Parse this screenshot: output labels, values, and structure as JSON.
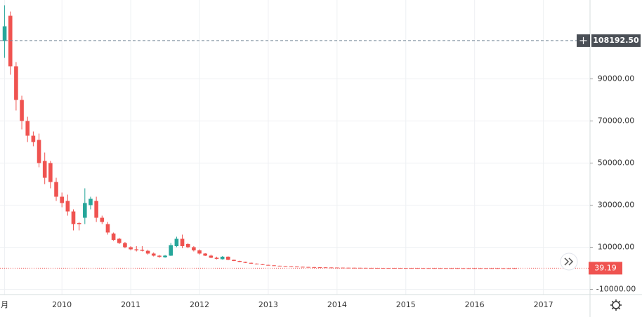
{
  "chart_data": {
    "type": "candlestick",
    "categories": [
      "月",
      null,
      null,
      null,
      null,
      null,
      null,
      null,
      null,
      null,
      "2010",
      null,
      null,
      null,
      null,
      null,
      null,
      null,
      null,
      null,
      null,
      null,
      "2011",
      null,
      null,
      null,
      null,
      null,
      null,
      null,
      null,
      null,
      null,
      null,
      "2012",
      null,
      null,
      null,
      null,
      null,
      null,
      null,
      null,
      null,
      null,
      null,
      "2013",
      null,
      null,
      null,
      null,
      null,
      null,
      null,
      null,
      null,
      null,
      null,
      "2014",
      null,
      null,
      null,
      null,
      null,
      null,
      null,
      null,
      null,
      null,
      null,
      "2015",
      null,
      null,
      null,
      null,
      null,
      null,
      null,
      null,
      null,
      null,
      null,
      "2016",
      null,
      null,
      null,
      null,
      null,
      null,
      null,
      null,
      null,
      null,
      null,
      "2017",
      null,
      null,
      null,
      null,
      null,
      null,
      null
    ],
    "open": [
      108000,
      120000,
      96000,
      80000,
      70000,
      63000,
      61000,
      51000,
      50000,
      41000,
      34000,
      32000,
      27000,
      21500,
      24000,
      30000,
      32000,
      24000,
      21000,
      16500,
      14000,
      12000,
      10000,
      9000,
      8800,
      8300,
      7000,
      6000,
      5200,
      6000,
      10500,
      14000,
      11500,
      10000,
      8500,
      7000,
      6000,
      5000,
      4300,
      5500,
      4000,
      3500,
      3000,
      2600,
      2200,
      1900,
      1600,
      1400,
      1200,
      1000,
      900,
      800,
      700,
      620,
      550,
      480,
      430,
      380,
      340,
      300,
      270,
      250,
      230,
      210,
      190,
      175,
      160,
      150,
      140,
      130,
      120,
      112,
      105,
      98,
      92,
      86,
      80,
      75,
      70,
      66,
      62,
      58,
      55,
      52,
      50,
      48,
      46,
      44,
      42,
      40,
      null,
      null,
      null,
      null,
      null,
      null,
      null,
      null,
      null,
      null,
      null,
      null
    ],
    "high": [
      125000,
      122000,
      98000,
      82000,
      72000,
      65000,
      64000,
      55000,
      51000,
      43000,
      36000,
      35000,
      28000,
      22000,
      38000,
      34000,
      34000,
      25000,
      22000,
      17000,
      14500,
      12500,
      10500,
      10500,
      10500,
      8800,
      7500,
      6300,
      6300,
      12000,
      15000,
      16000,
      12000,
      10500,
      9000,
      7200,
      6500,
      5500,
      5800,
      5700,
      4100,
      3600,
      3100,
      2700,
      2300,
      2000,
      1700,
      1450,
      1250,
      1050,
      950,
      850,
      740,
      650,
      580,
      500,
      450,
      400,
      360,
      320,
      285,
      265,
      240,
      220,
      200,
      185,
      170,
      158,
      148,
      138,
      127,
      118,
      110,
      103,
      97,
      90,
      85,
      79,
      74,
      70,
      66,
      61,
      58,
      55,
      53,
      51,
      49,
      47,
      45,
      42,
      null,
      null,
      null,
      null,
      null,
      null,
      null,
      null,
      null,
      null,
      null,
      null
    ],
    "low": [
      100000,
      92000,
      75000,
      66000,
      60000,
      58000,
      48000,
      40000,
      38000,
      32000,
      29000,
      25000,
      18000,
      18000,
      21000,
      28000,
      22000,
      21000,
      16000,
      13000,
      11500,
      9500,
      8500,
      8000,
      8000,
      6500,
      5600,
      5000,
      5000,
      5800,
      10000,
      9500,
      9500,
      8000,
      6500,
      5800,
      4800,
      4200,
      4100,
      3800,
      3400,
      2900,
      2500,
      2100,
      1800,
      1500,
      1300,
      1150,
      950,
      850,
      760,
      660,
      590,
      520,
      450,
      410,
      360,
      320,
      285,
      255,
      235,
      215,
      200,
      180,
      165,
      150,
      142,
      132,
      123,
      114,
      106,
      100,
      93,
      87,
      81,
      76,
      71,
      66,
      62,
      58,
      55,
      52,
      49,
      47,
      45,
      43,
      41,
      39,
      38,
      37.5,
      null,
      null,
      null,
      null,
      null,
      null,
      null,
      null,
      null,
      null,
      null,
      null
    ],
    "close": [
      115000,
      96000,
      80000,
      70000,
      63000,
      60000,
      50000,
      43000,
      41000,
      34000,
      31000,
      27000,
      21000,
      21000,
      31000,
      33000,
      24000,
      22000,
      17000,
      13500,
      12000,
      10000,
      9000,
      8500,
      8300,
      7000,
      6000,
      5400,
      6000,
      11000,
      14000,
      10500,
      10000,
      8500,
      7000,
      6000,
      5000,
      4500,
      5500,
      4000,
      3500,
      3000,
      2600,
      2200,
      1900,
      1600,
      1400,
      1200,
      1000,
      900,
      800,
      700,
      620,
      550,
      480,
      430,
      380,
      340,
      300,
      270,
      250,
      230,
      210,
      190,
      175,
      160,
      150,
      140,
      130,
      120,
      112,
      105,
      98,
      92,
      86,
      80,
      75,
      70,
      66,
      62,
      58,
      55,
      52,
      50,
      48,
      46,
      44,
      42,
      40,
      39.19,
      null,
      null,
      null,
      null,
      null,
      null,
      null,
      null,
      null,
      null,
      null,
      null
    ],
    "up_color": "#26a69a",
    "down_color": "#ef5350",
    "ylim": [
      -12500,
      127500
    ],
    "yticks": [
      {
        "value": -10000,
        "label": "-10000.00"
      },
      {
        "value": 10000,
        "label": "10000.00"
      },
      {
        "value": 30000,
        "label": "30000.00"
      },
      {
        "value": 50000,
        "label": "50000.00"
      },
      {
        "value": 70000,
        "label": "70000.00"
      },
      {
        "value": 90000,
        "label": "90000.00"
      }
    ],
    "grid": true,
    "crosshair": {
      "value": 108192.5,
      "label": "108192.50"
    },
    "last_price_label": "39.19"
  }
}
